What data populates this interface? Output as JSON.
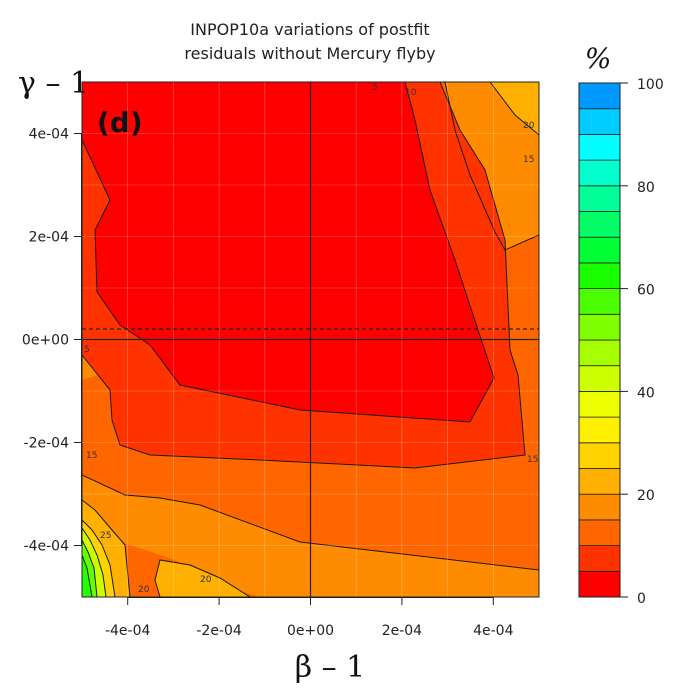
{
  "chart_data": {
    "type": "contour",
    "title_line1": "INPOP10a variations of postfit",
    "title_line2": "residuals without Mercury flyby",
    "panel_label": "(d)",
    "xlabel": "β – 1",
    "ylabel": "γ – 1",
    "colorbar_label": "%",
    "x_ticks": [
      "-4e-04",
      "-2e-04",
      "0e+00",
      "2e-04",
      "4e-04"
    ],
    "x_tick_values": [
      -0.0004,
      -0.0002,
      0,
      0.0002,
      0.0004
    ],
    "y_ticks": [
      "4e-04",
      "2e-04",
      "0e+00",
      "-2e-04",
      "-4e-04"
    ],
    "y_tick_values": [
      0.0004,
      0.0002,
      0,
      -0.0002,
      -0.0004
    ],
    "xlim": [
      -0.0005,
      0.0005
    ],
    "ylim": [
      -0.0005,
      0.0005
    ],
    "colorbar_ticks": [
      "0",
      "20",
      "40",
      "60",
      "80",
      "100"
    ],
    "colorbar_tick_values": [
      0,
      20,
      40,
      60,
      80,
      100
    ],
    "colorbar_range": [
      0,
      100
    ],
    "contour_levels": [
      0,
      5,
      10,
      15,
      20,
      25,
      30,
      35,
      40,
      45,
      50,
      55,
      60,
      65,
      70,
      75,
      80,
      85,
      90,
      95,
      100
    ],
    "band_colors": [
      "#ff0000",
      "#ff3300",
      "#ff6600",
      "#ff8c00",
      "#ffb000",
      "#ffd200",
      "#fff000",
      "#eeff00",
      "#ccff00",
      "#a6ff00",
      "#80ff00",
      "#4cff00",
      "#1aff00",
      "#00ff33",
      "#00ff66",
      "#00ff99",
      "#00ffcc",
      "#00ffff",
      "#00ccff",
      "#0099ff",
      "#0066ff"
    ],
    "contour_labels": [
      "5",
      "10",
      "15",
      "20",
      "25"
    ],
    "reference_lines": {
      "beta_minus_1": 0,
      "gamma_minus_1": 0,
      "gamma_minus_1_dashed": 2e-05
    }
  }
}
